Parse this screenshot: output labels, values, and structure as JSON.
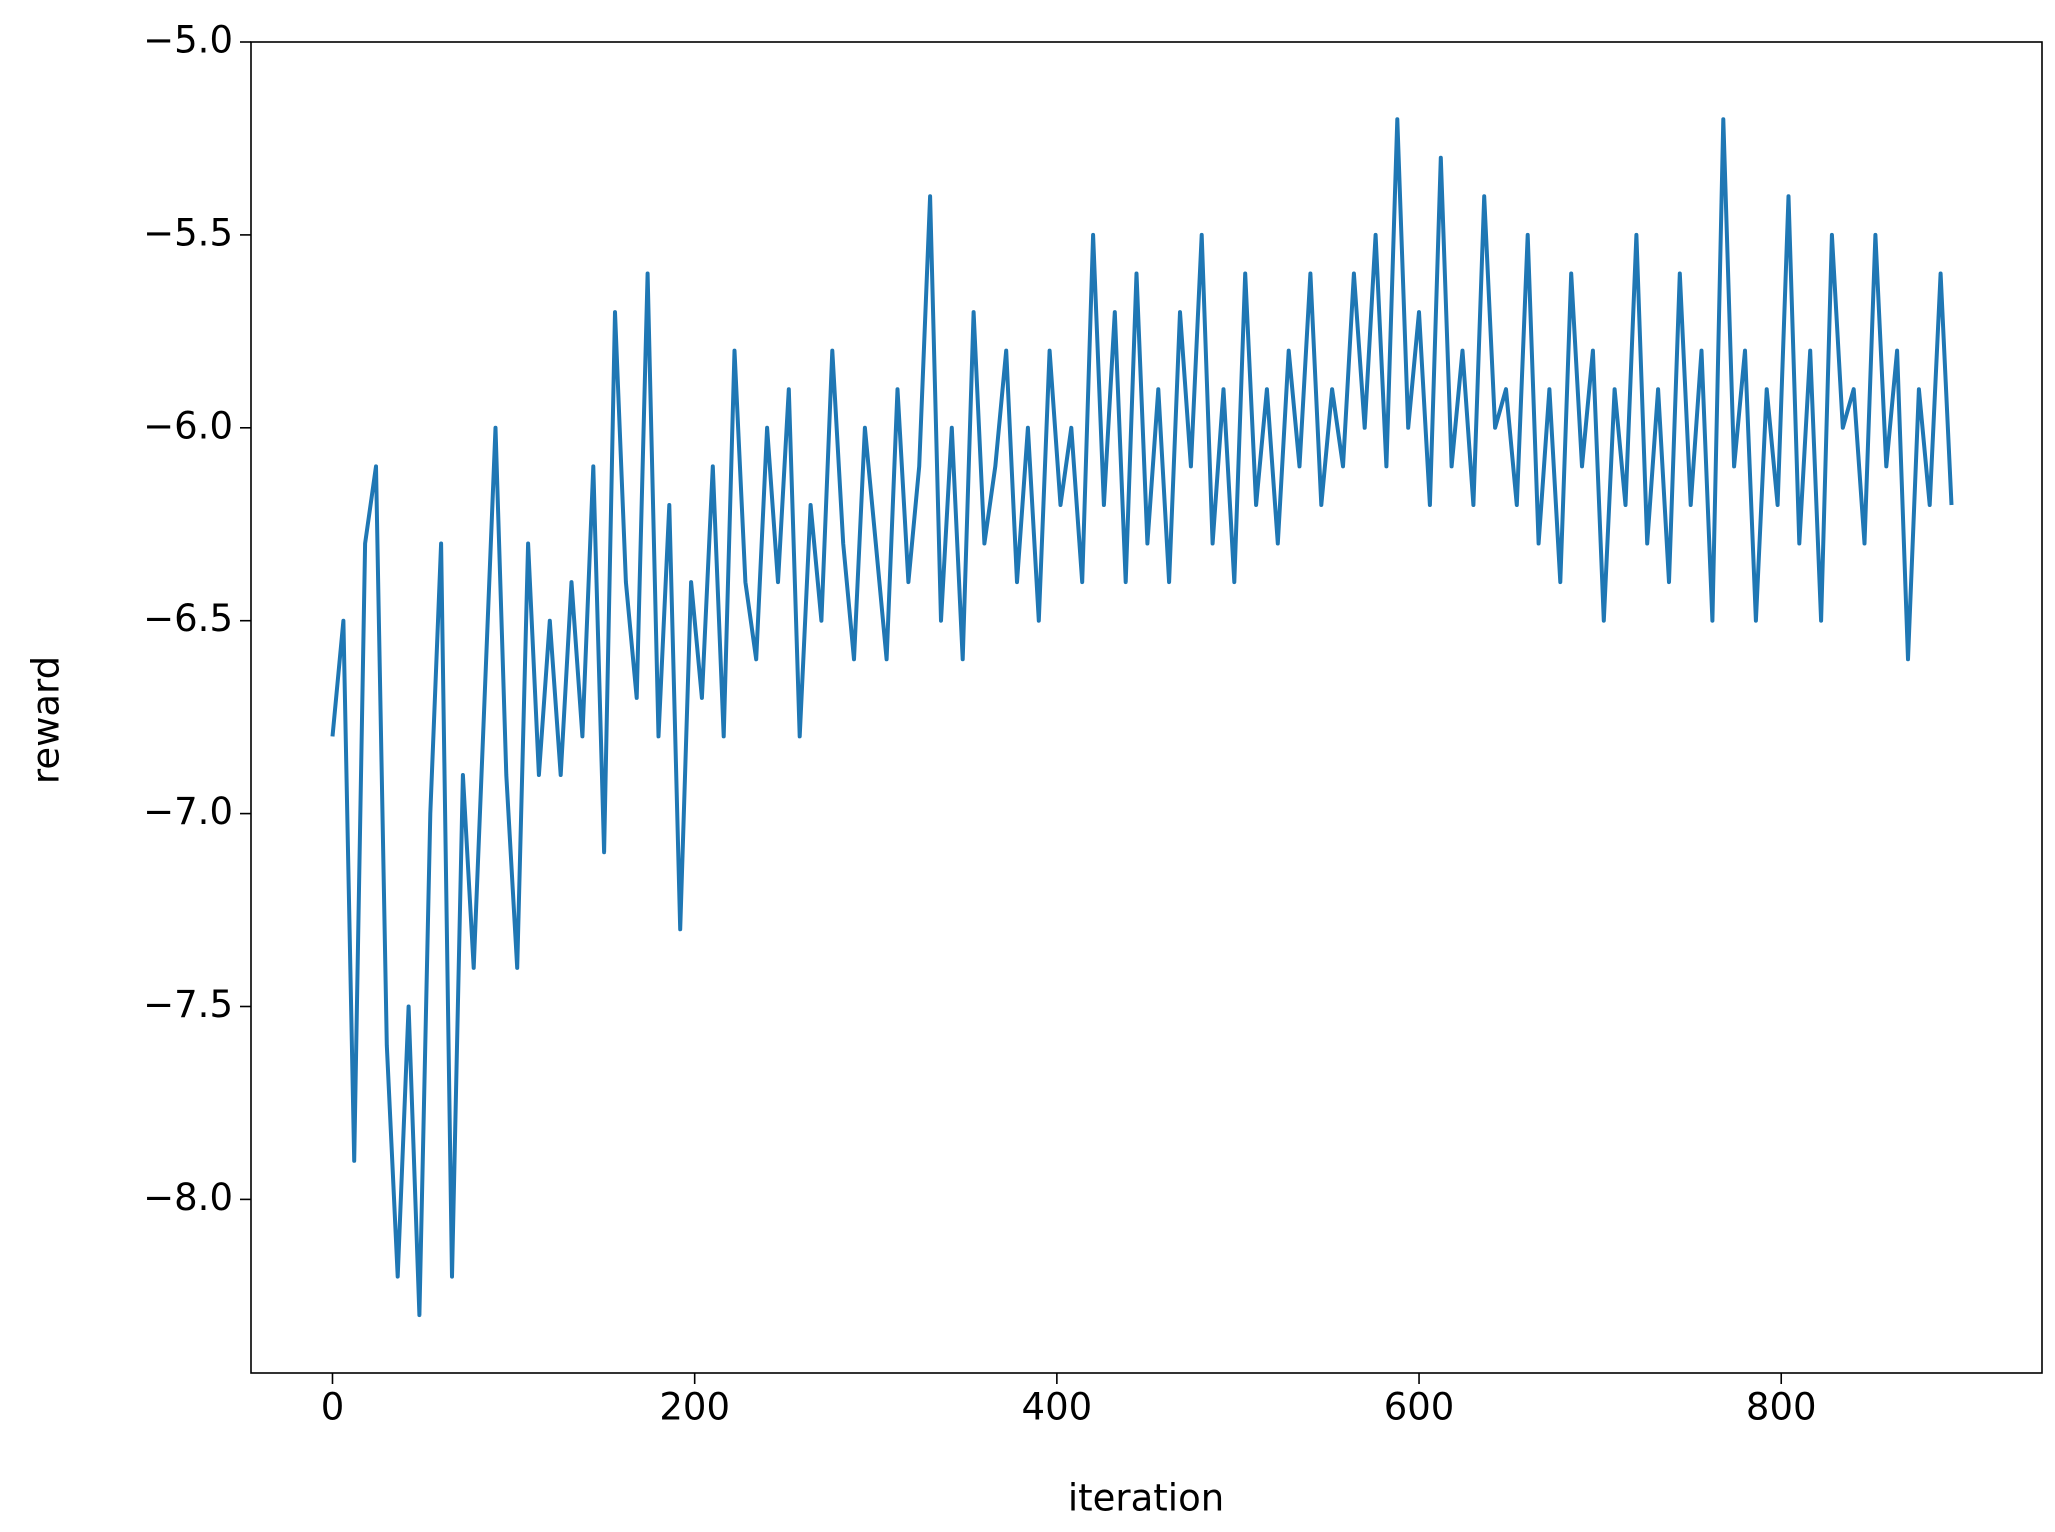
{
  "chart_data": {
    "type": "line",
    "xlabel": "iteration",
    "ylabel": "reward",
    "x": [
      0,
      6,
      12,
      18,
      24,
      30,
      36,
      42,
      48,
      54,
      60,
      66,
      72,
      78,
      84,
      90,
      96,
      102,
      108,
      114,
      120,
      126,
      132,
      138,
      144,
      150,
      156,
      162,
      168,
      174,
      180,
      186,
      192,
      198,
      204,
      210,
      216,
      222,
      228,
      234,
      240,
      246,
      252,
      258,
      264,
      270,
      276,
      282,
      288,
      294,
      300,
      306,
      312,
      318,
      324,
      330,
      336,
      342,
      348,
      354,
      360,
      366,
      372,
      378,
      384,
      390,
      396,
      402,
      408,
      414,
      420,
      426,
      432,
      438,
      444,
      450,
      456,
      462,
      468,
      474,
      480,
      486,
      492,
      498,
      504,
      510,
      516,
      522,
      528,
      534,
      540,
      546,
      552,
      558,
      564,
      570,
      576,
      582,
      588,
      594,
      600,
      606,
      612,
      618,
      624,
      630,
      636,
      642,
      648,
      654,
      660,
      666,
      672,
      678,
      684,
      690,
      696,
      702,
      708,
      714,
      720,
      726,
      732,
      738,
      744,
      750,
      756,
      762,
      768,
      774,
      780,
      786,
      792,
      798,
      804,
      810,
      816,
      822,
      828,
      834,
      840,
      846,
      852,
      858,
      864,
      870,
      876,
      882,
      888,
      894
    ],
    "series": [
      {
        "color": "#1f77b4",
        "values": [
          -6.8,
          -6.5,
          -7.9,
          -6.3,
          -6.1,
          -7.6,
          -8.2,
          -7.5,
          -8.3,
          -7.0,
          -6.3,
          -8.2,
          -6.9,
          -7.4,
          -6.7,
          -6.0,
          -6.9,
          -7.4,
          -6.3,
          -6.9,
          -6.5,
          -6.9,
          -6.4,
          -6.8,
          -6.1,
          -7.1,
          -5.7,
          -6.4,
          -6.7,
          -5.6,
          -6.8,
          -6.2,
          -7.3,
          -6.4,
          -6.7,
          -6.1,
          -6.8,
          -5.8,
          -6.4,
          -6.6,
          -6.0,
          -6.4,
          -5.9,
          -6.8,
          -6.2,
          -6.5,
          -5.8,
          -6.3,
          -6.6,
          -6.0,
          -6.3,
          -6.6,
          -5.9,
          -6.4,
          -6.1,
          -5.4,
          -6.5,
          -6.0,
          -6.6,
          -5.7,
          -6.3,
          -6.1,
          -5.8,
          -6.4,
          -6.0,
          -6.5,
          -5.8,
          -6.2,
          -6.0,
          -6.4,
          -5.5,
          -6.2,
          -5.7,
          -6.4,
          -5.6,
          -6.3,
          -5.9,
          -6.4,
          -5.7,
          -6.1,
          -5.5,
          -6.3,
          -5.9,
          -6.4,
          -5.6,
          -6.2,
          -5.9,
          -6.3,
          -5.8,
          -6.1,
          -5.6,
          -6.2,
          -5.9,
          -6.1,
          -5.6,
          -6.0,
          -5.5,
          -6.1,
          -5.2,
          -6.0,
          -5.7,
          -6.2,
          -5.3,
          -6.1,
          -5.8,
          -6.2,
          -5.4,
          -6.0,
          -5.9,
          -6.2,
          -5.5,
          -6.3,
          -5.9,
          -6.4,
          -5.6,
          -6.1,
          -5.8,
          -6.5,
          -5.9,
          -6.2,
          -5.5,
          -6.3,
          -5.9,
          -6.4,
          -5.6,
          -6.2,
          -5.8,
          -6.5,
          -5.2,
          -6.1,
          -5.8,
          -6.5,
          -5.9,
          -6.2,
          -5.4,
          -6.3,
          -5.8,
          -6.5,
          -5.5,
          -6.0,
          -5.9,
          -6.3,
          -5.5,
          -6.1,
          -5.8,
          -6.6,
          -5.9,
          -6.2,
          -5.6,
          -6.2
        ]
      }
    ],
    "xlim": [
      -45,
      944
    ],
    "xticks": [
      0,
      200,
      400,
      600,
      800
    ],
    "ylim": [
      -8.45,
      -5.0
    ],
    "yticks": [
      {
        "value": -5.0,
        "label": "−5.0"
      },
      {
        "value": -5.5,
        "label": "−5.5"
      },
      {
        "value": -6.0,
        "label": "−6.0"
      },
      {
        "value": -6.5,
        "label": "−6.5"
      },
      {
        "value": -7.0,
        "label": "−7.0"
      },
      {
        "value": -7.5,
        "label": "−7.5"
      },
      {
        "value": -8.0,
        "label": "−8.0"
      }
    ]
  }
}
